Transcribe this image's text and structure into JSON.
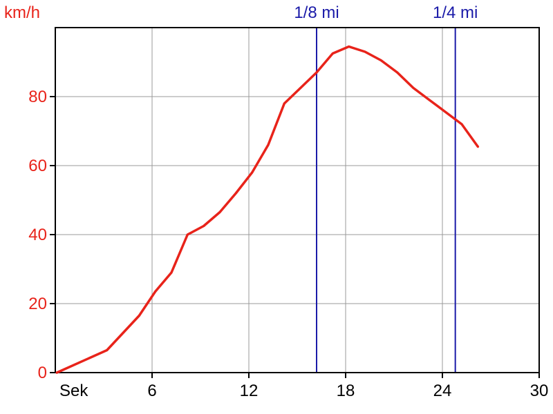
{
  "chart_data": {
    "type": "line",
    "ylabel": "km/h",
    "xlabel": "Sek",
    "xlim": [
      0,
      30
    ],
    "ylim": [
      0,
      100
    ],
    "x_ticks": [
      "6",
      "12",
      "18",
      "24",
      "30"
    ],
    "y_ticks": [
      "0",
      "20",
      "40",
      "60",
      "80"
    ],
    "grid": true,
    "markers": [
      {
        "label": "1/8 mi",
        "x": 16.2
      },
      {
        "label": "1/4 mi",
        "x": 24.8
      }
    ],
    "series": [
      {
        "color": "#e8231a",
        "points": [
          [
            0.1,
            0
          ],
          [
            3.2,
            6.5
          ],
          [
            5.2,
            16.5
          ],
          [
            6.2,
            23.5
          ],
          [
            7.2,
            29
          ],
          [
            8.2,
            40
          ],
          [
            9.2,
            42.5
          ],
          [
            10.2,
            46.5
          ],
          [
            11.2,
            52
          ],
          [
            12.2,
            58
          ],
          [
            13.2,
            66
          ],
          [
            14.2,
            78
          ],
          [
            15.2,
            82.5
          ],
          [
            16.2,
            87
          ],
          [
            17.2,
            92.5
          ],
          [
            18.2,
            94.5
          ],
          [
            19.2,
            93
          ],
          [
            20.2,
            90.5
          ],
          [
            21.2,
            87
          ],
          [
            22.2,
            82.5
          ],
          [
            23.2,
            79
          ],
          [
            24.2,
            75.5
          ],
          [
            25.2,
            72
          ],
          [
            26.2,
            65.5
          ]
        ]
      }
    ],
    "colors": {
      "axis": "#000000",
      "grid": "#999999",
      "ylabels": "#e8231a",
      "markers": "#1a1aa8",
      "xlabels": "#000000"
    }
  }
}
